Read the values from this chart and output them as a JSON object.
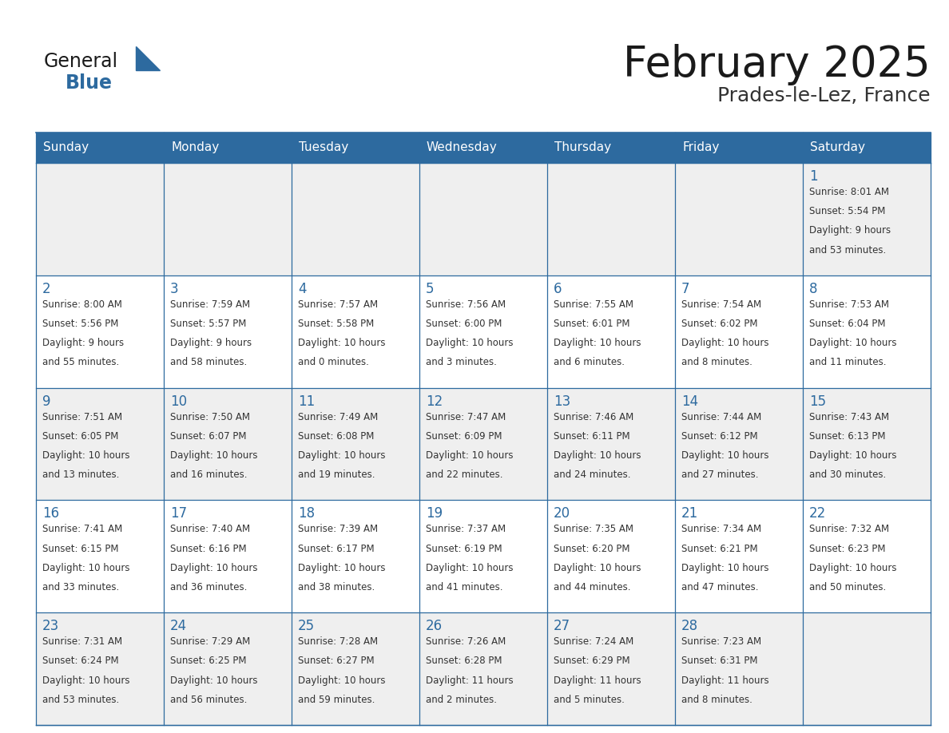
{
  "title": "February 2025",
  "subtitle": "Prades-le-Lez, France",
  "header_bg": "#2D6A9F",
  "header_text": "#FFFFFF",
  "cell_bg_odd": "#EFEFEF",
  "cell_bg_even": "#FFFFFF",
  "border_color": "#2D6A9F",
  "day_headers": [
    "Sunday",
    "Monday",
    "Tuesday",
    "Wednesday",
    "Thursday",
    "Friday",
    "Saturday"
  ],
  "title_color": "#1a1a1a",
  "subtitle_color": "#333333",
  "day_num_color": "#2D6A9F",
  "cell_text_color": "#333333",
  "logo_general_color": "#1a1a1a",
  "logo_blue_color": "#2D6A9F",
  "calendar_data": {
    "1": {
      "sunrise": "8:01 AM",
      "sunset": "5:54 PM",
      "daylight": "9 hours and 53 minutes."
    },
    "2": {
      "sunrise": "8:00 AM",
      "sunset": "5:56 PM",
      "daylight": "9 hours and 55 minutes."
    },
    "3": {
      "sunrise": "7:59 AM",
      "sunset": "5:57 PM",
      "daylight": "9 hours and 58 minutes."
    },
    "4": {
      "sunrise": "7:57 AM",
      "sunset": "5:58 PM",
      "daylight": "10 hours and 0 minutes."
    },
    "5": {
      "sunrise": "7:56 AM",
      "sunset": "6:00 PM",
      "daylight": "10 hours and 3 minutes."
    },
    "6": {
      "sunrise": "7:55 AM",
      "sunset": "6:01 PM",
      "daylight": "10 hours and 6 minutes."
    },
    "7": {
      "sunrise": "7:54 AM",
      "sunset": "6:02 PM",
      "daylight": "10 hours and 8 minutes."
    },
    "8": {
      "sunrise": "7:53 AM",
      "sunset": "6:04 PM",
      "daylight": "10 hours and 11 minutes."
    },
    "9": {
      "sunrise": "7:51 AM",
      "sunset": "6:05 PM",
      "daylight": "10 hours and 13 minutes."
    },
    "10": {
      "sunrise": "7:50 AM",
      "sunset": "6:07 PM",
      "daylight": "10 hours and 16 minutes."
    },
    "11": {
      "sunrise": "7:49 AM",
      "sunset": "6:08 PM",
      "daylight": "10 hours and 19 minutes."
    },
    "12": {
      "sunrise": "7:47 AM",
      "sunset": "6:09 PM",
      "daylight": "10 hours and 22 minutes."
    },
    "13": {
      "sunrise": "7:46 AM",
      "sunset": "6:11 PM",
      "daylight": "10 hours and 24 minutes."
    },
    "14": {
      "sunrise": "7:44 AM",
      "sunset": "6:12 PM",
      "daylight": "10 hours and 27 minutes."
    },
    "15": {
      "sunrise": "7:43 AM",
      "sunset": "6:13 PM",
      "daylight": "10 hours and 30 minutes."
    },
    "16": {
      "sunrise": "7:41 AM",
      "sunset": "6:15 PM",
      "daylight": "10 hours and 33 minutes."
    },
    "17": {
      "sunrise": "7:40 AM",
      "sunset": "6:16 PM",
      "daylight": "10 hours and 36 minutes."
    },
    "18": {
      "sunrise": "7:39 AM",
      "sunset": "6:17 PM",
      "daylight": "10 hours and 38 minutes."
    },
    "19": {
      "sunrise": "7:37 AM",
      "sunset": "6:19 PM",
      "daylight": "10 hours and 41 minutes."
    },
    "20": {
      "sunrise": "7:35 AM",
      "sunset": "6:20 PM",
      "daylight": "10 hours and 44 minutes."
    },
    "21": {
      "sunrise": "7:34 AM",
      "sunset": "6:21 PM",
      "daylight": "10 hours and 47 minutes."
    },
    "22": {
      "sunrise": "7:32 AM",
      "sunset": "6:23 PM",
      "daylight": "10 hours and 50 minutes."
    },
    "23": {
      "sunrise": "7:31 AM",
      "sunset": "6:24 PM",
      "daylight": "10 hours and 53 minutes."
    },
    "24": {
      "sunrise": "7:29 AM",
      "sunset": "6:25 PM",
      "daylight": "10 hours and 56 minutes."
    },
    "25": {
      "sunrise": "7:28 AM",
      "sunset": "6:27 PM",
      "daylight": "10 hours and 59 minutes."
    },
    "26": {
      "sunrise": "7:26 AM",
      "sunset": "6:28 PM",
      "daylight": "11 hours and 2 minutes."
    },
    "27": {
      "sunrise": "7:24 AM",
      "sunset": "6:29 PM",
      "daylight": "11 hours and 5 minutes."
    },
    "28": {
      "sunrise": "7:23 AM",
      "sunset": "6:31 PM",
      "daylight": "11 hours and 8 minutes."
    }
  },
  "weeks": [
    [
      null,
      null,
      null,
      null,
      null,
      null,
      1
    ],
    [
      2,
      3,
      4,
      5,
      6,
      7,
      8
    ],
    [
      9,
      10,
      11,
      12,
      13,
      14,
      15
    ],
    [
      16,
      17,
      18,
      19,
      20,
      21,
      22
    ],
    [
      23,
      24,
      25,
      26,
      27,
      28,
      null
    ]
  ]
}
